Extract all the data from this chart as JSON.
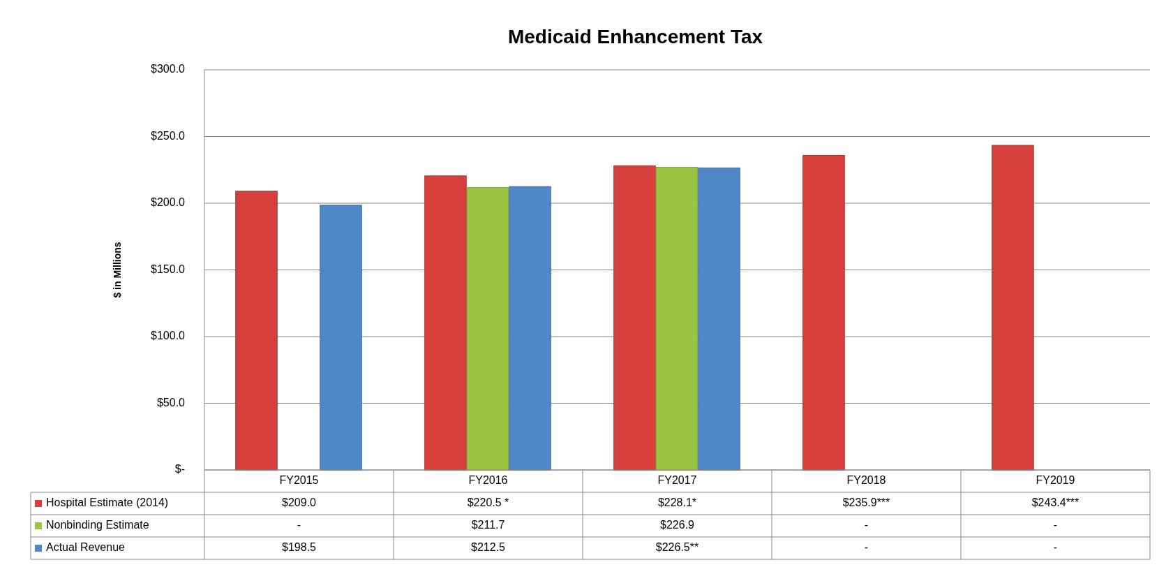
{
  "chart_data": {
    "type": "bar",
    "title": "Medicaid Enhancement Tax",
    "ylabel": "$ in Millions",
    "categories": [
      "FY2015",
      "FY2016",
      "FY2017",
      "FY2018",
      "FY2019"
    ],
    "series": [
      {
        "name": "Hospital Estimate (2014)",
        "color": "#d63f3a",
        "values": [
          209.0,
          220.5,
          228.1,
          235.9,
          243.4
        ],
        "value_labels": [
          "$209.0",
          "$220.5 *",
          "$228.1*",
          "$235.9***",
          "$243.4***"
        ]
      },
      {
        "name": "Nonbinding Estimate",
        "color": "#9cc443",
        "values": [
          null,
          211.7,
          226.9,
          null,
          null
        ],
        "value_labels": [
          "-",
          "$211.7",
          "$226.9",
          "-",
          "-"
        ]
      },
      {
        "name": "Actual Revenue",
        "color": "#4f87c9",
        "values": [
          198.5,
          212.5,
          226.5,
          null,
          null
        ],
        "value_labels": [
          "$198.5",
          "$212.5",
          "$226.5**",
          "-",
          "-"
        ]
      }
    ],
    "ylim": [
      0,
      300
    ],
    "yticks": [
      {
        "value": 0,
        "label": "$-"
      },
      {
        "value": 50,
        "label": "$50.0"
      },
      {
        "value": 100,
        "label": "$100.0"
      },
      {
        "value": 150,
        "label": "$150.0"
      },
      {
        "value": 200,
        "label": "$200.0"
      },
      {
        "value": 250,
        "label": "$250.0"
      },
      {
        "value": 300,
        "label": "$300.0"
      }
    ],
    "grid": "y",
    "legend": "bottom"
  }
}
